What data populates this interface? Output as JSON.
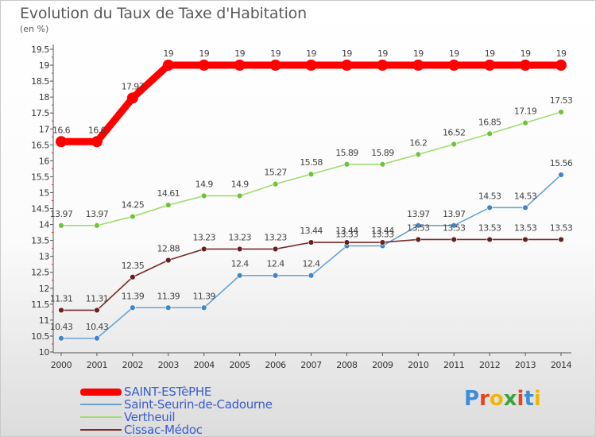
{
  "title": "Evolution du Taux de Taxe d'Habitation",
  "subtitle": "(en %)",
  "chart_data": {
    "type": "line",
    "x": [
      "2000",
      "2001",
      "2002",
      "2003",
      "2004",
      "2005",
      "2006",
      "2007",
      "2008",
      "2009",
      "2010",
      "2011",
      "2012",
      "2013",
      "2014"
    ],
    "ylim": [
      10,
      19.5
    ],
    "yticks": [
      "10",
      "10.5",
      "11",
      "11.5",
      "12",
      "12.5",
      "13",
      "13.5",
      "14",
      "14.5",
      "15",
      "15.5",
      "16",
      "16.5",
      "17",
      "17.5",
      "18",
      "18.5",
      "19",
      "19.5"
    ],
    "grid": false,
    "legend_position": "bottom-left",
    "series": [
      {
        "name": "SAINT-ESTèPHE",
        "color": "#ff0000",
        "values": [
          16.6,
          16.6,
          17.97,
          19,
          19,
          19,
          19,
          19,
          19,
          19,
          19,
          19,
          19,
          19,
          19
        ],
        "labels": [
          "16.6",
          "16.6",
          "17.97",
          "19",
          "19",
          "19",
          "19",
          "19",
          "19",
          "19",
          "19",
          "19",
          "19",
          "19",
          "19"
        ]
      },
      {
        "name": "Saint-Seurin-de-Cadourne",
        "color": "#6aa2d6",
        "marker": "#3d86c7",
        "values": [
          10.43,
          10.43,
          11.39,
          11.39,
          11.39,
          12.4,
          12.4,
          12.4,
          13.33,
          13.33,
          13.97,
          13.97,
          14.53,
          14.53,
          15.56
        ],
        "labels": [
          "10.43",
          "10.43",
          "11.39",
          "11.39",
          "11.39",
          "12.4",
          "12.4",
          "12.4",
          "13.33",
          "13.33",
          "13.97",
          "13.97",
          "14.53",
          "14.53",
          "15.56"
        ]
      },
      {
        "name": "Vertheuil",
        "color": "#9fdc6e",
        "marker": "#6cc43a",
        "values": [
          13.97,
          13.97,
          14.25,
          14.61,
          14.9,
          14.9,
          15.27,
          15.58,
          15.89,
          15.89,
          16.2,
          16.52,
          16.85,
          17.19,
          17.53
        ],
        "labels": [
          "13.97",
          "13.97",
          "14.25",
          "14.61",
          "14.9",
          "14.9",
          "15.27",
          "15.58",
          "15.89",
          "15.89",
          "16.2",
          "16.52",
          "16.85",
          "17.19",
          "17.53"
        ]
      },
      {
        "name": "Cissac-Médoc",
        "color": "#7a2b2b",
        "marker": "#6a1e1e",
        "values": [
          11.31,
          11.31,
          12.35,
          12.88,
          13.23,
          13.23,
          13.23,
          13.44,
          13.44,
          13.44,
          13.53,
          13.53,
          13.53,
          13.53,
          13.53
        ],
        "labels": [
          "11.31",
          "11.31",
          "12.35",
          "12.88",
          "13.23",
          "13.23",
          "13.23",
          "13.44",
          "13.44",
          "13.44",
          "13.53",
          "13.53",
          "13.53",
          "13.53",
          "13.53"
        ]
      }
    ]
  },
  "logo": {
    "letters": [
      "P",
      "r",
      "o",
      "x",
      "i",
      "t",
      "i"
    ],
    "colors": [
      "#3a8fd8",
      "#e8451e",
      "#f2b705",
      "#3aa33a",
      "#e8451e",
      "#3a8fd8",
      "#f2b705"
    ]
  }
}
